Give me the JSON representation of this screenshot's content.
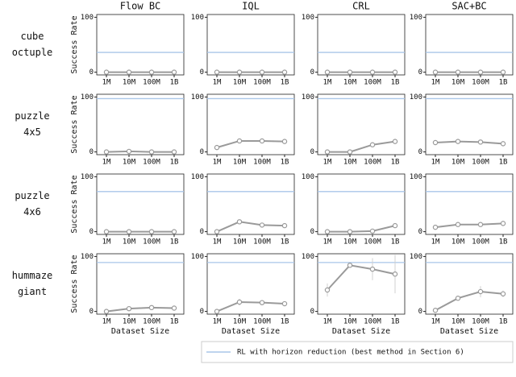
{
  "chart_data": [
    {
      "type": "line",
      "title": "Flow BC",
      "row_label": [
        "cube",
        "octuple"
      ],
      "ylabel": "Success Rate",
      "categories": [
        "1M",
        "10M",
        "100M",
        "1B"
      ],
      "values": [
        0,
        0,
        0,
        0
      ],
      "color": "#9a9a9a",
      "reference": 36,
      "reference_color": "#a9c6e8",
      "ylim": [
        -5,
        105
      ],
      "yticks": [
        0,
        100
      ]
    },
    {
      "type": "line",
      "title": "IQL",
      "categories": [
        "1M",
        "10M",
        "100M",
        "1B"
      ],
      "values": [
        0,
        0,
        0,
        0
      ],
      "color": "#9a9a9a",
      "reference": 36,
      "reference_color": "#a9c6e8",
      "ylim": [
        -5,
        105
      ],
      "yticks": [
        0,
        100
      ]
    },
    {
      "type": "line",
      "title": "CRL",
      "categories": [
        "1M",
        "10M",
        "100M",
        "1B"
      ],
      "values": [
        0,
        0,
        0,
        0
      ],
      "color": "#9a9a9a",
      "reference": 36,
      "reference_color": "#a9c6e8",
      "ylim": [
        -5,
        105
      ],
      "yticks": [
        0,
        100
      ]
    },
    {
      "type": "line",
      "title": "SAC+BC",
      "categories": [
        "1M",
        "10M",
        "100M",
        "1B"
      ],
      "values": [
        0,
        0,
        0,
        0
      ],
      "color": "#9a9a9a",
      "reference": 36,
      "reference_color": "#a9c6e8",
      "ylim": [
        -5,
        105
      ],
      "yticks": [
        0,
        100
      ]
    },
    {
      "type": "line",
      "row_label": [
        "puzzle",
        "4x5"
      ],
      "ylabel": "Success Rate",
      "categories": [
        "1M",
        "10M",
        "100M",
        "1B"
      ],
      "values": [
        0,
        1,
        0,
        0
      ],
      "color": "#9a9a9a",
      "reference": 97,
      "reference_color": "#a9c6e8",
      "ylim": [
        -5,
        105
      ],
      "yticks": [
        0,
        100
      ]
    },
    {
      "type": "line",
      "categories": [
        "1M",
        "10M",
        "100M",
        "1B"
      ],
      "values": [
        8,
        20,
        20,
        19
      ],
      "color": "#9a9a9a",
      "reference": 97,
      "reference_color": "#a9c6e8",
      "ylim": [
        -5,
        105
      ],
      "yticks": [
        0,
        100
      ]
    },
    {
      "type": "line",
      "categories": [
        "1M",
        "10M",
        "100M",
        "1B"
      ],
      "values": [
        0,
        0,
        13,
        19
      ],
      "color": "#9a9a9a",
      "reference": 97,
      "reference_color": "#a9c6e8",
      "ylim": [
        -5,
        105
      ],
      "yticks": [
        0,
        100
      ]
    },
    {
      "type": "line",
      "categories": [
        "1M",
        "10M",
        "100M",
        "1B"
      ],
      "values": [
        17,
        19,
        18,
        15
      ],
      "color": "#9a9a9a",
      "reference": 97,
      "reference_color": "#a9c6e8",
      "ylim": [
        -5,
        105
      ],
      "yticks": [
        0,
        100
      ]
    },
    {
      "type": "line",
      "row_label": [
        "puzzle",
        "4x6"
      ],
      "ylabel": "Success Rate",
      "categories": [
        "1M",
        "10M",
        "100M",
        "1B"
      ],
      "values": [
        0,
        0,
        0,
        0
      ],
      "color": "#9a9a9a",
      "reference": 73,
      "reference_color": "#a9c6e8",
      "ylim": [
        -5,
        105
      ],
      "yticks": [
        0,
        100
      ]
    },
    {
      "type": "line",
      "categories": [
        "1M",
        "10M",
        "100M",
        "1B"
      ],
      "values": [
        0,
        18,
        12,
        11
      ],
      "color": "#9a9a9a",
      "reference": 73,
      "reference_color": "#a9c6e8",
      "ylim": [
        -5,
        105
      ],
      "yticks": [
        0,
        100
      ]
    },
    {
      "type": "line",
      "categories": [
        "1M",
        "10M",
        "100M",
        "1B"
      ],
      "values": [
        0,
        0,
        1,
        11
      ],
      "color": "#9a9a9a",
      "reference": 73,
      "reference_color": "#a9c6e8",
      "ylim": [
        -5,
        105
      ],
      "yticks": [
        0,
        100
      ]
    },
    {
      "type": "line",
      "categories": [
        "1M",
        "10M",
        "100M",
        "1B"
      ],
      "values": [
        8,
        13,
        13,
        15
      ],
      "color": "#9a9a9a",
      "reference": 73,
      "reference_color": "#a9c6e8",
      "ylim": [
        -5,
        105
      ],
      "yticks": [
        0,
        100
      ]
    },
    {
      "type": "line",
      "row_label": [
        "hummaze",
        "giant"
      ],
      "ylabel": "Success Rate",
      "xlabel": "Dataset Size",
      "categories": [
        "1M",
        "10M",
        "100M",
        "1B"
      ],
      "values": [
        0,
        5,
        7,
        6
      ],
      "color": "#9a9a9a",
      "reference": 89,
      "reference_color": "#a9c6e8",
      "ylim": [
        -5,
        105
      ],
      "yticks": [
        0,
        100
      ]
    },
    {
      "type": "line",
      "xlabel": "Dataset Size",
      "categories": [
        "1M",
        "10M",
        "100M",
        "1B"
      ],
      "values": [
        0,
        17,
        16,
        14
      ],
      "errors": [
        1,
        6,
        2,
        2
      ],
      "color": "#9a9a9a",
      "reference": 89,
      "reference_color": "#a9c6e8",
      "ylim": [
        -5,
        105
      ],
      "yticks": [
        0,
        100
      ]
    },
    {
      "type": "line",
      "xlabel": "Dataset Size",
      "categories": [
        "1M",
        "10M",
        "100M",
        "1B"
      ],
      "values": [
        39,
        84,
        77,
        68
      ],
      "errors": [
        12,
        3,
        20,
        35
      ],
      "color": "#9a9a9a",
      "reference": 89,
      "reference_color": "#a9c6e8",
      "ylim": [
        -5,
        105
      ],
      "yticks": [
        0,
        100
      ]
    },
    {
      "type": "line",
      "xlabel": "Dataset Size",
      "categories": [
        "1M",
        "10M",
        "100M",
        "1B"
      ],
      "values": [
        2,
        24,
        36,
        32
      ],
      "errors": [
        2,
        3,
        10,
        6
      ],
      "color": "#9a9a9a",
      "reference": 89,
      "reference_color": "#a9c6e8",
      "ylim": [
        -5,
        105
      ],
      "yticks": [
        0,
        100
      ]
    }
  ],
  "legend": {
    "label": "RL with horizon reduction (best method in Section 6)",
    "color": "#a9c6e8"
  }
}
